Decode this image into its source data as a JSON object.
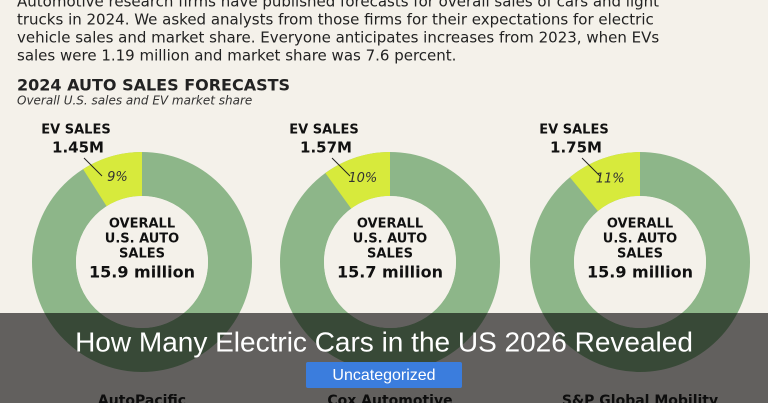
{
  "intro": [
    "Automotive research firms have published forecasts for overall sales of cars and light",
    "trucks in 2024. We asked analysts from those firms for their expectations for electric",
    "vehicle sales and market share. Everyone anticipates increases from 2023, when EVs",
    "sales were 1.19 million and market share was 7.6 percent."
  ],
  "section_title": "2024 AUTO SALES FORECASTS",
  "section_subtitle": "Overall U.S. sales and EV market share",
  "chart_data": [
    {
      "type": "donut",
      "ev_label": "EV SALES",
      "ev_sales": "1.45M",
      "values": [
        9
      ],
      "value_labels": [
        "9%"
      ],
      "center_label": [
        "OVERALL",
        "U.S. AUTO",
        "SALES"
      ],
      "total": "15.9 million",
      "source": "AutoPacific",
      "color": "#d7ea3c",
      "ring_color": "#8db689"
    },
    {
      "type": "donut",
      "ev_label": "EV SALES",
      "ev_sales": "1.57M",
      "values": [
        10
      ],
      "value_labels": [
        "10%"
      ],
      "center_label": [
        "OVERALL",
        "U.S. AUTO",
        "SALES"
      ],
      "total": "15.7 million",
      "source": "Cox Automotive",
      "color": "#d7ea3c",
      "ring_color": "#8db689"
    },
    {
      "type": "donut",
      "ev_label": "EV SALES",
      "ev_sales": "1.75M",
      "values": [
        11
      ],
      "value_labels": [
        "11%"
      ],
      "center_label": [
        "OVERALL",
        "U.S. AUTO",
        "SALES"
      ],
      "total": "15.9 million",
      "source": "S&P Global Mobility",
      "color": "#d7ea3c",
      "ring_color": "#8db689"
    }
  ],
  "overlay": {
    "title": "How Many Electric Cars in the US 2026 Revealed",
    "category": "Uncategorized"
  }
}
